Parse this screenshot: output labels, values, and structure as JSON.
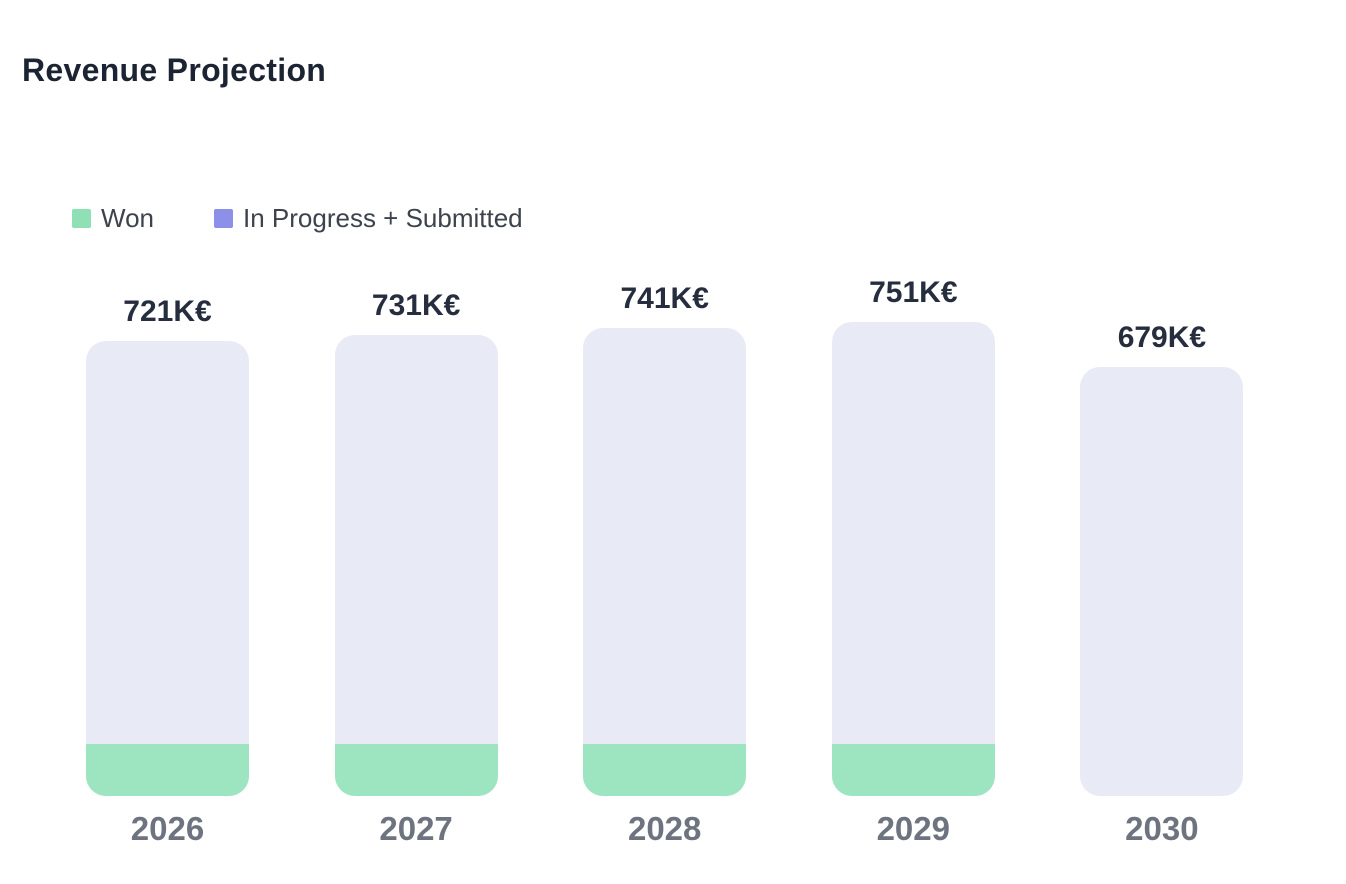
{
  "header": {
    "title": "Revenue Projection"
  },
  "legend": {
    "items": [
      {
        "label": "Won",
        "color": "#90e0b5"
      },
      {
        "label": "In Progress + Submitted",
        "color": "#8c90e8"
      }
    ]
  },
  "chart_data": {
    "type": "bar",
    "stacked": true,
    "title": "Revenue Projection",
    "unit": "K€",
    "categories": [
      "2026",
      "2027",
      "2028",
      "2029",
      "2030"
    ],
    "series": [
      {
        "name": "Won",
        "color": "#9de4c1",
        "values": [
          82,
          82,
          82,
          82,
          0
        ]
      },
      {
        "name": "In Progress + Submitted",
        "color": "#e8eaf6",
        "values": [
          639,
          649,
          659,
          669,
          679
        ]
      }
    ],
    "totals": [
      721,
      731,
      741,
      751,
      679
    ],
    "total_labels": [
      "721K€",
      "731K€",
      "741K€",
      "751K€",
      "679K€"
    ],
    "ylim": [
      0,
      800
    ],
    "grid": false,
    "legend_position": "top-left"
  },
  "colors": {
    "background": "#ffffff",
    "title_text": "#1c2332",
    "value_label_text": "#262d3e",
    "axis_label_text": "#6d7480",
    "legend_text": "#3c434d",
    "bar_in_progress_fill": "#e8eaf6",
    "bar_won_fill": "#9de4c1",
    "legend_won_swatch": "#90e0b5",
    "legend_in_progress_swatch": "#8c90e8"
  }
}
